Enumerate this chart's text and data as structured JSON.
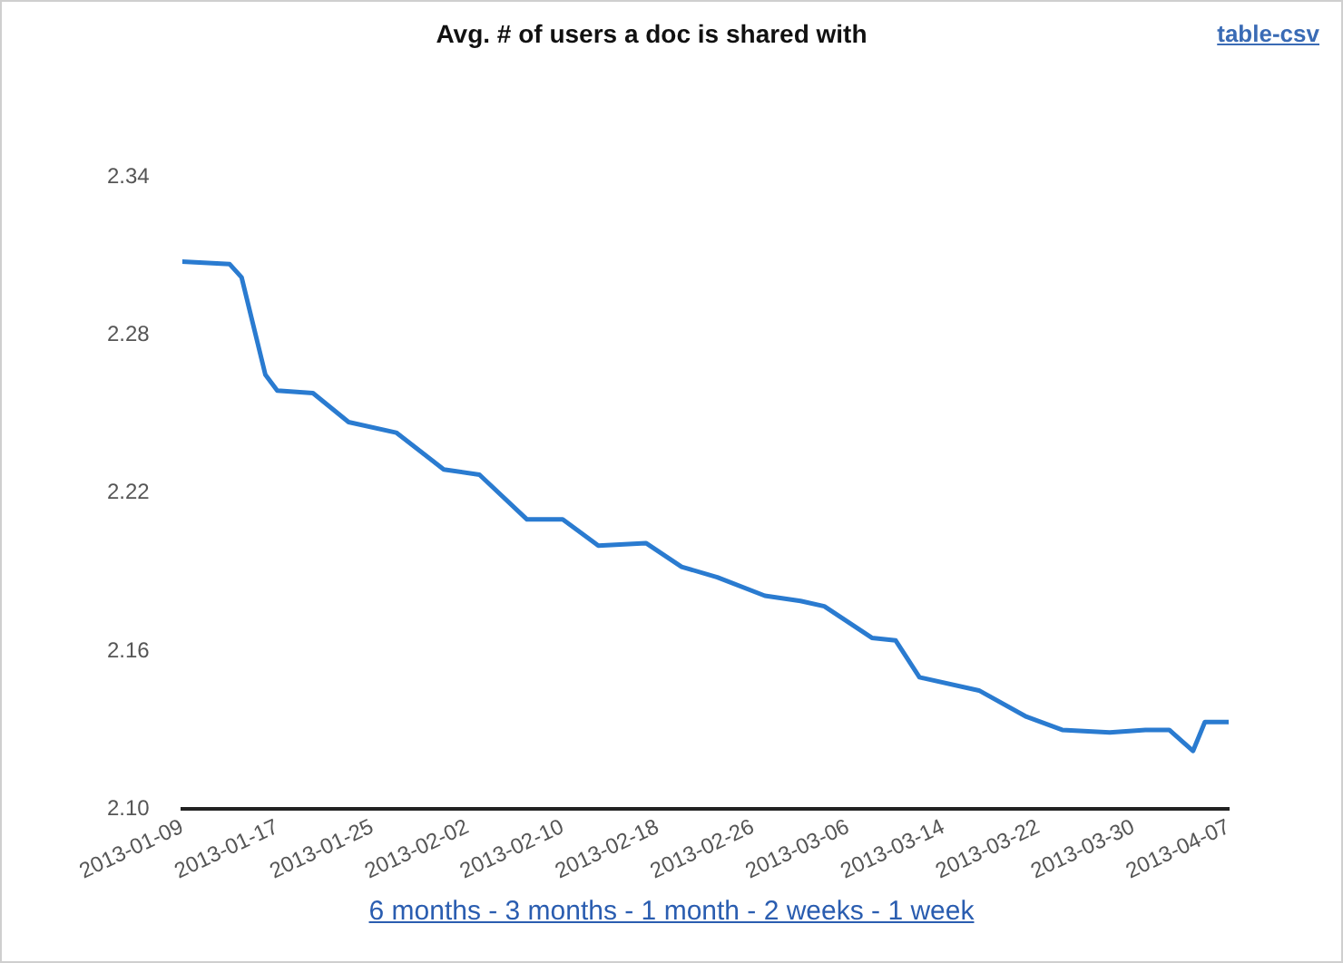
{
  "chart_data": {
    "type": "line",
    "title": "Avg. # of users a doc is shared with",
    "annotations": [
      "table-csv",
      "6 months - 3 months - 1 month - 2 weeks - 1 week"
    ],
    "x": [
      "2013-01-09",
      "2013-01-13",
      "2013-01-14",
      "2013-01-16",
      "2013-01-17",
      "2013-01-20",
      "2013-01-23",
      "2013-01-27",
      "2013-01-31",
      "2013-02-03",
      "2013-02-07",
      "2013-02-10",
      "2013-02-13",
      "2013-02-17",
      "2013-02-20",
      "2013-02-23",
      "2013-02-27",
      "2013-03-02",
      "2013-03-04",
      "2013-03-08",
      "2013-03-10",
      "2013-03-12",
      "2013-03-17",
      "2013-03-21",
      "2013-03-24",
      "2013-03-28",
      "2013-03-31",
      "2013-04-02",
      "2013-04-04",
      "2013-04-05",
      "2013-04-07"
    ],
    "series": [
      {
        "color": "#2a7bd0",
        "values": [
          2.308,
          2.307,
          2.302,
          2.265,
          2.259,
          2.258,
          2.247,
          2.243,
          2.229,
          2.227,
          2.21,
          2.21,
          2.2,
          2.201,
          2.192,
          2.188,
          2.181,
          2.179,
          2.177,
          2.165,
          2.164,
          2.15,
          2.145,
          2.135,
          2.13,
          2.129,
          2.13,
          2.13,
          2.122,
          2.133,
          2.133
        ]
      }
    ],
    "xlim": [
      "2013-01-09",
      "2013-04-07"
    ],
    "xticks": [
      "2013-01-09",
      "2013-01-17",
      "2013-01-25",
      "2013-02-02",
      "2013-02-10",
      "2013-02-18",
      "2013-02-26",
      "2013-03-06",
      "2013-03-14",
      "2013-03-22",
      "2013-03-30",
      "2013-04-07"
    ],
    "ylim": [
      2.1,
      2.34
    ],
    "yticks": [
      {
        "value": 2.1,
        "label": "2.10"
      },
      2.16,
      2.22,
      2.28,
      2.34
    ],
    "grid": false,
    "legend": false,
    "marker": "none",
    "line_style": "solid"
  }
}
